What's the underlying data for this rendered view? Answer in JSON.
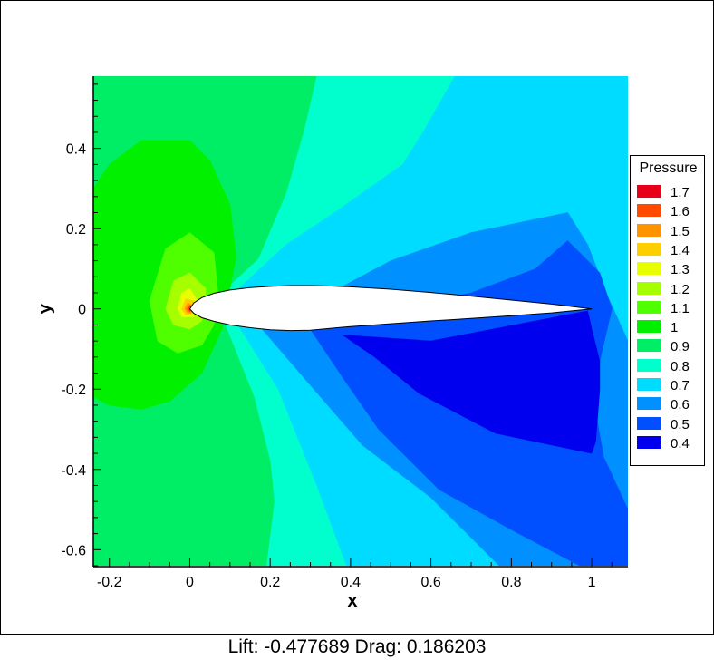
{
  "caption": "Lift: -0.477689 Drag: 0.186203",
  "chart_data": {
    "type": "heatmap",
    "subtype": "filled-contour",
    "xlabel": "x",
    "ylabel": "y",
    "xlim": [
      -0.24,
      1.09
    ],
    "ylim": [
      -0.64,
      0.58
    ],
    "xticks": [
      -0.2,
      0,
      0.2,
      0.4,
      0.6,
      0.8,
      1
    ],
    "xtick_labels": [
      "-0.2",
      "0",
      "0.2",
      "0.4",
      "0.6",
      "0.8",
      "1"
    ],
    "yticks": [
      -0.6,
      -0.4,
      -0.2,
      0,
      0.2,
      0.4
    ],
    "ytick_labels": [
      "-0.6",
      "-0.4",
      "-0.2",
      "0",
      "0.2",
      "0.4"
    ],
    "legend": {
      "title": "Pressure",
      "position": "right",
      "levels": [
        {
          "label": "1.7",
          "value": 1.7,
          "color": "#e8001a"
        },
        {
          "label": "1.6",
          "value": 1.6,
          "color": "#ff4a00"
        },
        {
          "label": "1.5",
          "value": 1.5,
          "color": "#ff9400"
        },
        {
          "label": "1.4",
          "value": 1.4,
          "color": "#ffce00"
        },
        {
          "label": "1.3",
          "value": 1.3,
          "color": "#e8ff00"
        },
        {
          "label": "1.2",
          "value": 1.2,
          "color": "#a6ff00"
        },
        {
          "label": "1.1",
          "value": 1.1,
          "color": "#4fff00"
        },
        {
          "label": "1",
          "value": 1.0,
          "color": "#00f000"
        },
        {
          "label": "0.9",
          "value": 0.9,
          "color": "#00ee66"
        },
        {
          "label": "0.8",
          "value": 0.8,
          "color": "#00ffcc"
        },
        {
          "label": "0.7",
          "value": 0.7,
          "color": "#00dcff"
        },
        {
          "label": "0.6",
          "value": 0.6,
          "color": "#0090ff"
        },
        {
          "label": "0.5",
          "value": 0.5,
          "color": "#0050ff"
        },
        {
          "label": "0.4",
          "value": 0.4,
          "color": "#0000ee"
        }
      ]
    },
    "regions": [
      {
        "level": 0.9,
        "points": [
          [
            -0.24,
            0.58
          ],
          [
            0.315,
            0.58
          ],
          [
            0.285,
            0.45
          ],
          [
            0.24,
            0.29
          ],
          [
            0.17,
            0.125
          ],
          [
            0.1,
            0.06
          ],
          [
            0.08,
            -0.02
          ],
          [
            0.16,
            -0.22
          ],
          [
            0.2,
            -0.38
          ],
          [
            0.21,
            -0.48
          ],
          [
            0.19,
            -0.64
          ],
          [
            -0.24,
            -0.64
          ]
        ]
      },
      {
        "level": 1.0,
        "points": [
          [
            -0.24,
            0.3
          ],
          [
            -0.2,
            0.36
          ],
          [
            -0.12,
            0.42
          ],
          [
            0.0,
            0.42
          ],
          [
            0.05,
            0.37
          ],
          [
            0.1,
            0.26
          ],
          [
            0.115,
            0.13
          ],
          [
            0.1,
            0.05
          ],
          [
            0.085,
            -0.02
          ],
          [
            0.08,
            -0.05
          ],
          [
            0.03,
            -0.16
          ],
          [
            -0.05,
            -0.23
          ],
          [
            -0.12,
            -0.25
          ],
          [
            -0.2,
            -0.24
          ],
          [
            -0.24,
            -0.22
          ]
        ]
      },
      {
        "level": 1.1,
        "points": [
          [
            -0.1,
            0.02
          ],
          [
            -0.06,
            0.15
          ],
          [
            0.0,
            0.19
          ],
          [
            0.06,
            0.14
          ],
          [
            0.07,
            0.04
          ],
          [
            0.06,
            -0.04
          ],
          [
            0.03,
            -0.09
          ],
          [
            -0.03,
            -0.11
          ],
          [
            -0.08,
            -0.08
          ]
        ]
      },
      {
        "level": 1.2,
        "points": [
          [
            -0.06,
            0.0
          ],
          [
            -0.04,
            0.07
          ],
          [
            0.0,
            0.09
          ],
          [
            0.04,
            0.05
          ],
          [
            0.03,
            -0.03
          ],
          [
            0.0,
            -0.05
          ],
          [
            -0.04,
            -0.04
          ]
        ]
      },
      {
        "level": 1.3,
        "points": [
          [
            -0.03,
            0.0
          ],
          [
            -0.02,
            0.04
          ],
          [
            0.0,
            0.05
          ],
          [
            0.02,
            0.02
          ],
          [
            0.01,
            -0.02
          ],
          [
            -0.02,
            -0.02
          ]
        ]
      },
      {
        "level": 1.4,
        "points": [
          [
            -0.02,
            0.0
          ],
          [
            -0.01,
            0.025
          ],
          [
            0.01,
            0.02
          ],
          [
            0.01,
            -0.01
          ],
          [
            -0.01,
            -0.015
          ]
        ]
      },
      {
        "level": 1.5,
        "points": [
          [
            -0.012,
            0.0
          ],
          [
            -0.005,
            0.015
          ],
          [
            0.007,
            0.008
          ],
          [
            0.004,
            -0.01
          ],
          [
            -0.006,
            -0.01
          ]
        ]
      },
      {
        "level": 1.6,
        "points": [
          [
            -0.007,
            0.0
          ],
          [
            0.0,
            0.009
          ],
          [
            0.005,
            0.0
          ],
          [
            0.0,
            -0.007
          ]
        ]
      },
      {
        "level": 0.7,
        "points": [
          [
            0.66,
            0.58
          ],
          [
            1.09,
            0.58
          ],
          [
            1.09,
            -0.64
          ],
          [
            0.39,
            -0.64
          ],
          [
            0.32,
            -0.45
          ],
          [
            0.22,
            -0.2
          ],
          [
            0.12,
            -0.04
          ],
          [
            0.1,
            0.03
          ],
          [
            0.175,
            0.1
          ],
          [
            0.24,
            0.16
          ],
          [
            0.36,
            0.24
          ],
          [
            0.53,
            0.36
          ],
          [
            0.58,
            0.44
          ]
        ]
      },
      {
        "level": 0.6,
        "points": [
          [
            0.18,
            -0.05
          ],
          [
            0.22,
            -0.02
          ],
          [
            0.35,
            0.04
          ],
          [
            0.5,
            0.12
          ],
          [
            0.7,
            0.19
          ],
          [
            0.94,
            0.24
          ],
          [
            0.99,
            0.16
          ],
          [
            1.04,
            0.03
          ],
          [
            1.09,
            -0.08
          ],
          [
            1.09,
            -0.64
          ],
          [
            0.77,
            -0.64
          ],
          [
            0.6,
            -0.47
          ],
          [
            0.43,
            -0.34
          ],
          [
            0.3,
            -0.19
          ]
        ]
      },
      {
        "level": 0.5,
        "points": [
          [
            0.3,
            -0.05
          ],
          [
            0.5,
            0.0
          ],
          [
            0.7,
            0.04
          ],
          [
            0.86,
            0.1
          ],
          [
            0.94,
            0.17
          ],
          [
            1.02,
            0.09
          ],
          [
            1.05,
            0.0
          ],
          [
            1.02,
            -0.13
          ],
          [
            1.01,
            -0.26
          ],
          [
            1.03,
            -0.37
          ],
          [
            1.09,
            -0.5
          ],
          [
            1.09,
            -0.64
          ],
          [
            0.97,
            -0.64
          ],
          [
            0.8,
            -0.55
          ],
          [
            0.62,
            -0.45
          ],
          [
            0.47,
            -0.3
          ],
          [
            0.38,
            -0.17
          ]
        ]
      },
      {
        "level": 0.4,
        "points": [
          [
            0.38,
            -0.065
          ],
          [
            0.6,
            -0.08
          ],
          [
            0.99,
            -0.005
          ],
          [
            1.0,
            -0.05
          ],
          [
            1.02,
            -0.13
          ],
          [
            1.02,
            -0.2
          ],
          [
            1.01,
            -0.33
          ],
          [
            1.0,
            -0.36
          ],
          [
            0.76,
            -0.31
          ],
          [
            0.57,
            -0.21
          ],
          [
            0.46,
            -0.12
          ]
        ]
      }
    ],
    "airfoil_upper": [
      [
        0.0,
        0.0
      ],
      [
        0.01,
        0.015
      ],
      [
        0.03,
        0.028
      ],
      [
        0.06,
        0.039
      ],
      [
        0.1,
        0.047
      ],
      [
        0.15,
        0.053
      ],
      [
        0.2,
        0.056
      ],
      [
        0.25,
        0.058
      ],
      [
        0.3,
        0.058
      ],
      [
        0.35,
        0.057
      ],
      [
        0.4,
        0.055
      ],
      [
        0.5,
        0.049
      ],
      [
        0.6,
        0.041
      ],
      [
        0.7,
        0.032
      ],
      [
        0.8,
        0.022
      ],
      [
        0.9,
        0.012
      ],
      [
        1.0,
        0.0
      ]
    ],
    "airfoil_lower": [
      [
        1.0,
        0.0
      ],
      [
        0.9,
        -0.01
      ],
      [
        0.8,
        -0.017
      ],
      [
        0.7,
        -0.024
      ],
      [
        0.6,
        -0.03
      ],
      [
        0.5,
        -0.037
      ],
      [
        0.4,
        -0.044
      ],
      [
        0.3,
        -0.053
      ],
      [
        0.25,
        -0.054
      ],
      [
        0.2,
        -0.052
      ],
      [
        0.15,
        -0.047
      ],
      [
        0.1,
        -0.04
      ],
      [
        0.06,
        -0.031
      ],
      [
        0.03,
        -0.022
      ],
      [
        0.01,
        -0.011
      ],
      [
        0.0,
        0.0
      ]
    ]
  }
}
